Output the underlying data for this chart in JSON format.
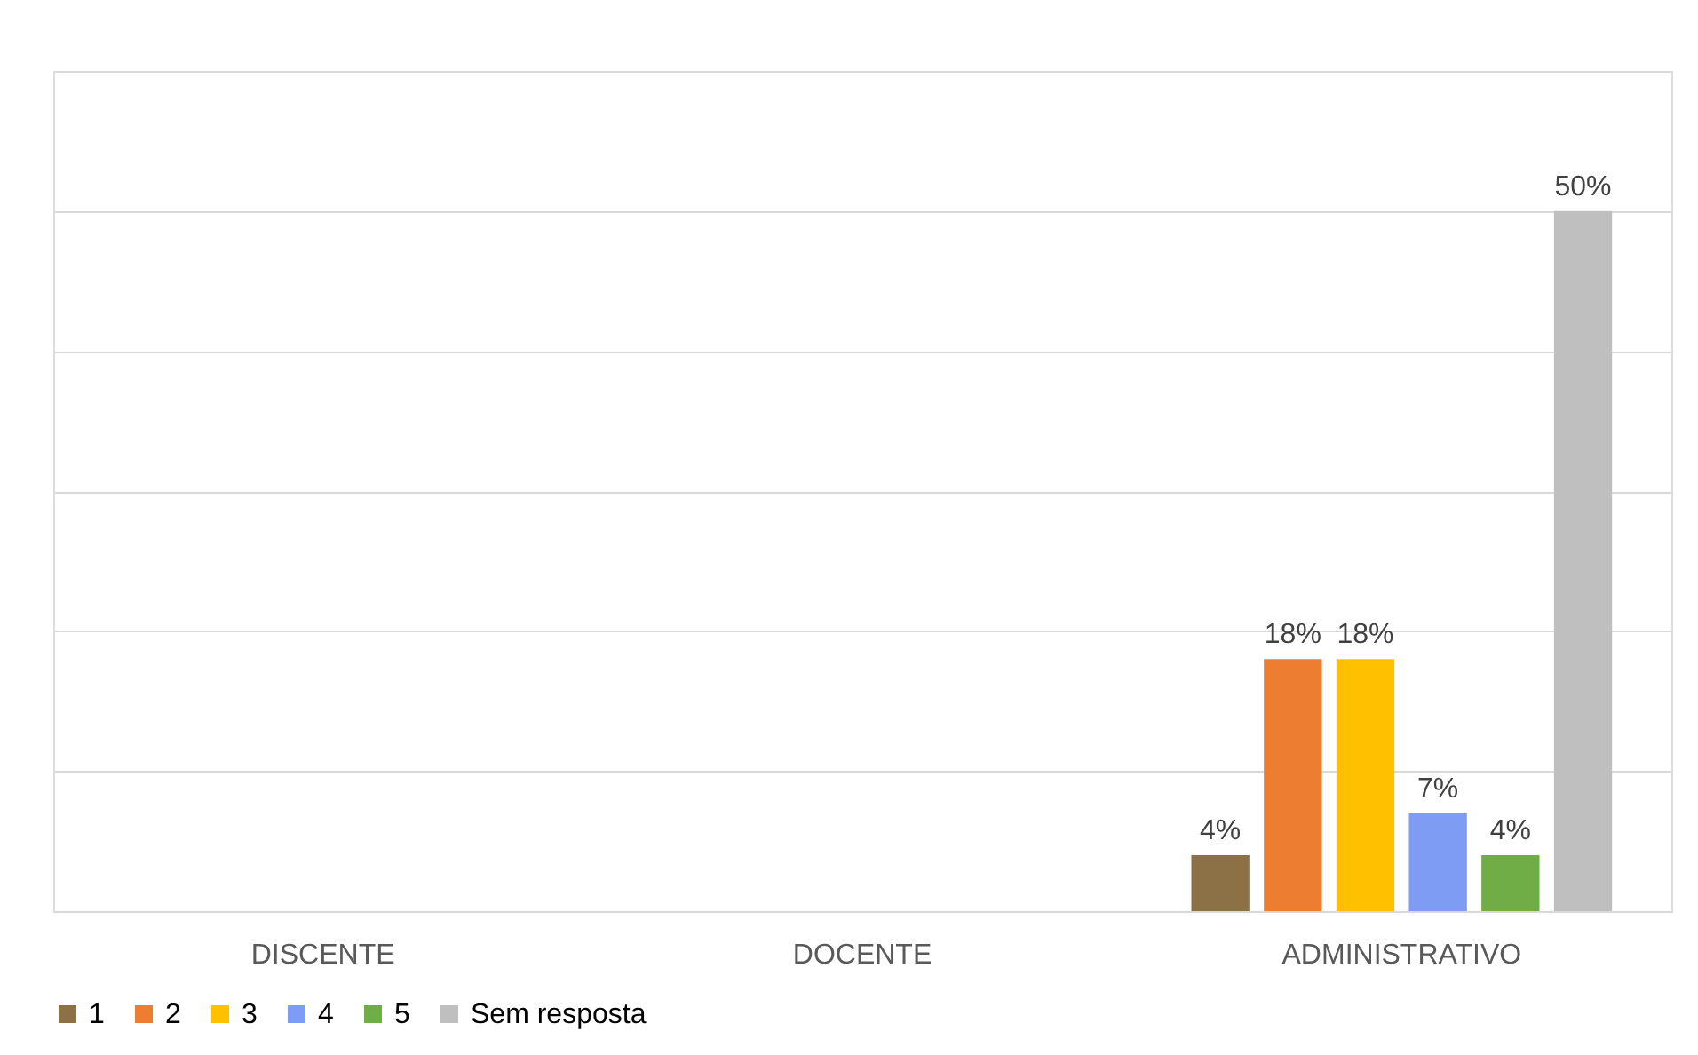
{
  "chart_data": {
    "type": "bar",
    "categories": [
      "DISCENTE",
      "DOCENTE",
      "ADMINISTRATIVO"
    ],
    "series": [
      {
        "name": "1",
        "color": "#8b7145",
        "values": [
          null,
          null,
          4
        ],
        "value_labels": [
          null,
          null,
          "4%"
        ]
      },
      {
        "name": "2",
        "color": "#ed7d31",
        "values": [
          null,
          null,
          18
        ],
        "value_labels": [
          null,
          null,
          "18%"
        ]
      },
      {
        "name": "3",
        "color": "#ffc000",
        "values": [
          null,
          null,
          18
        ],
        "value_labels": [
          null,
          null,
          "18%"
        ]
      },
      {
        "name": "4",
        "color": "#7f9cf5",
        "values": [
          null,
          null,
          7
        ],
        "value_labels": [
          null,
          null,
          "7%"
        ]
      },
      {
        "name": "5",
        "color": "#70ad47",
        "values": [
          null,
          null,
          4
        ],
        "value_labels": [
          null,
          null,
          "4%"
        ]
      },
      {
        "name": "Sem resposta",
        "color": "#bfbfbf",
        "values": [
          null,
          null,
          50
        ],
        "value_labels": [
          null,
          null,
          "50%"
        ]
      }
    ],
    "ylim": [
      0,
      60
    ],
    "yticks": [
      {
        "value": 0,
        "label": null
      },
      {
        "value": 10,
        "label": null
      },
      {
        "value": 20,
        "label": null
      },
      {
        "value": 30,
        "label": null
      },
      {
        "value": 40,
        "label": null
      },
      {
        "value": 50,
        "label": null
      },
      {
        "value": 60,
        "label": null
      }
    ],
    "tick_labels": "x",
    "grid": "y",
    "legend": "bottom"
  }
}
